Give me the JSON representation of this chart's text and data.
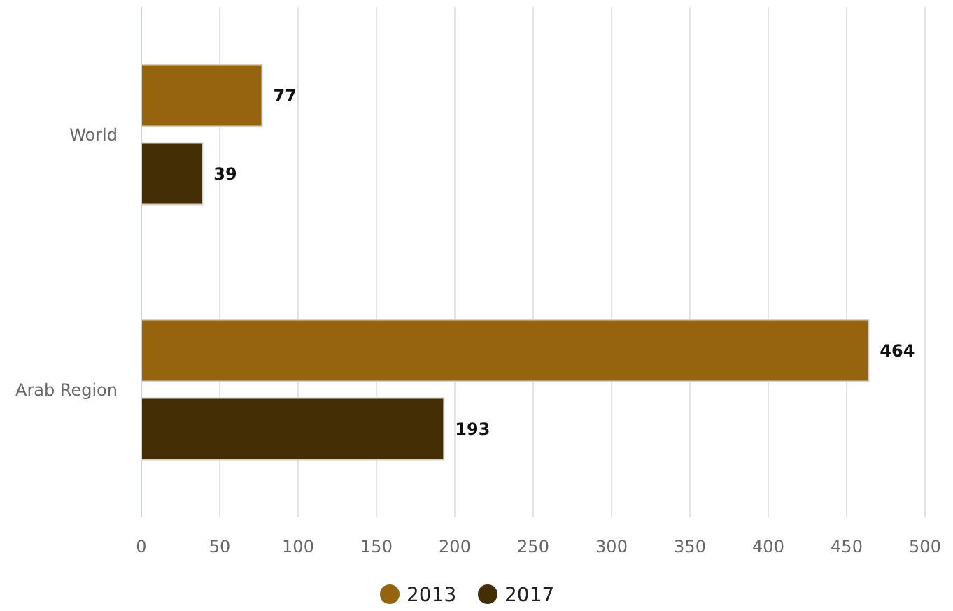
{
  "chart_data": {
    "type": "bar",
    "orientation": "horizontal",
    "categories": [
      "World",
      "Arab Region"
    ],
    "series": [
      {
        "name": "2013",
        "color": "#96640e",
        "values": [
          77,
          464
        ]
      },
      {
        "name": "2017",
        "color": "#432e05",
        "values": [
          39,
          193
        ]
      }
    ],
    "xlim": [
      0,
      500
    ],
    "xticks": [
      0,
      50,
      100,
      150,
      200,
      250,
      300,
      350,
      400,
      450,
      500
    ],
    "grid": "x",
    "legend": "bottom",
    "data_labels": true
  }
}
